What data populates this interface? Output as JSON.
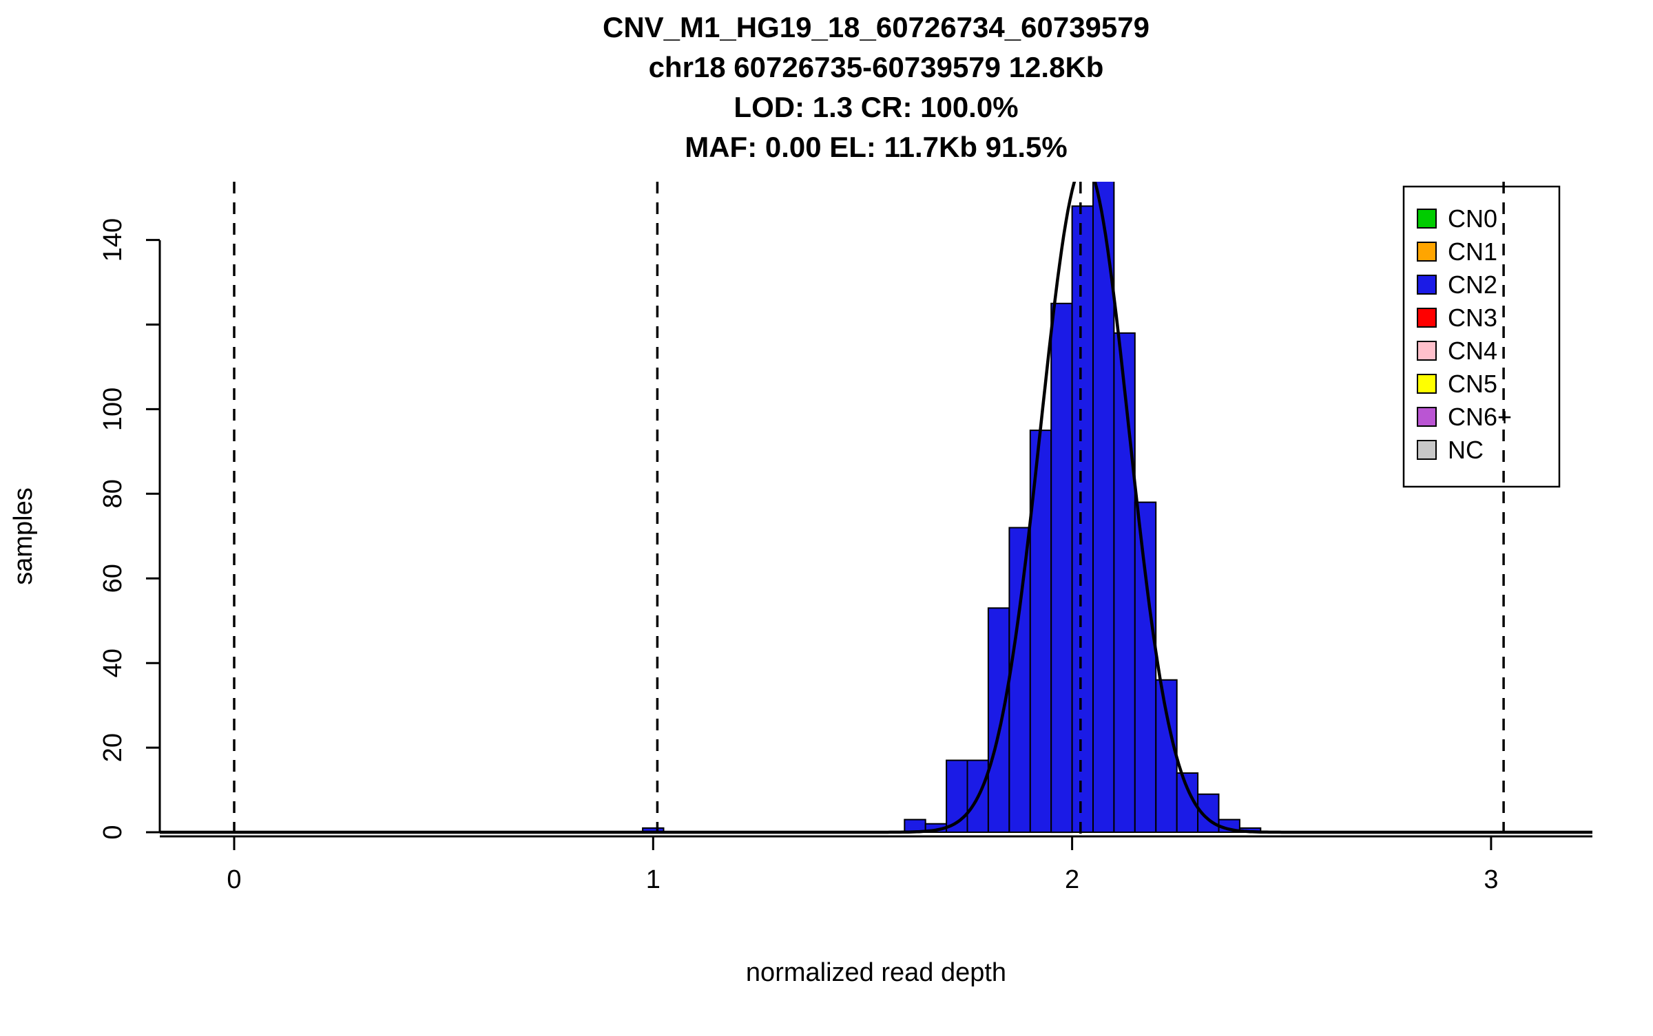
{
  "chart_data": {
    "type": "histogram",
    "title_lines": [
      "CNV_M1_HG19_18_60726734_60739579",
      "chr18 60726735-60739579 12.8Kb",
      "LOD: 1.3 CR: 100.0%",
      "MAF: 0.00 EL: 11.7Kb 91.5%"
    ],
    "xlabel": "normalized read depth",
    "ylabel": "samples",
    "xlim": [
      -0.18,
      3.25
    ],
    "ylim": [
      0,
      154
    ],
    "x_ticks": [
      {
        "v": 0,
        "label": "0"
      },
      {
        "v": 1,
        "label": "1"
      },
      {
        "v": 2,
        "label": "2"
      },
      {
        "v": 3,
        "label": "3"
      }
    ],
    "y_ticks": [
      {
        "v": 0,
        "label": "0"
      },
      {
        "v": 20,
        "label": "20"
      },
      {
        "v": 40,
        "label": "40"
      },
      {
        "v": 60,
        "label": "60"
      },
      {
        "v": 80,
        "label": "80"
      },
      {
        "v": 100,
        "label": "100"
      },
      {
        "v": 120,
        "label": ""
      },
      {
        "v": 140,
        "label": "140"
      }
    ],
    "histogram": {
      "bin_start": 1.6,
      "bin_width": 0.05,
      "counts": [
        3,
        2,
        17,
        17,
        53,
        72,
        95,
        125,
        148,
        155,
        118,
        78,
        36,
        14,
        9,
        3,
        1
      ],
      "bar_color": "#1b1be6",
      "bar_border": "#000000"
    },
    "extra_bars": [
      {
        "x0": 0.975,
        "width": 0.05,
        "count": 1
      }
    ],
    "fit_curve": {
      "shape": "gaussian",
      "mean": 2.03,
      "sd": 0.105,
      "peak": 158,
      "color": "#000000"
    },
    "dashed_lines": {
      "x_values": [
        0,
        1.01,
        2.02,
        3.03
      ],
      "color": "#000000"
    },
    "legend": {
      "items": [
        {
          "label": "CN0",
          "color": "#00CC00"
        },
        {
          "label": "CN1",
          "color": "#FFA500"
        },
        {
          "label": "CN2",
          "color": "#1b1be6"
        },
        {
          "label": "CN3",
          "color": "#FF0000"
        },
        {
          "label": "CN4",
          "color": "#FFC0CB"
        },
        {
          "label": "CN5",
          "color": "#FFFF00"
        },
        {
          "label": "CN6+",
          "color": "#BA55D3"
        },
        {
          "label": "NC",
          "color": "#C8C8C8"
        }
      ]
    }
  }
}
